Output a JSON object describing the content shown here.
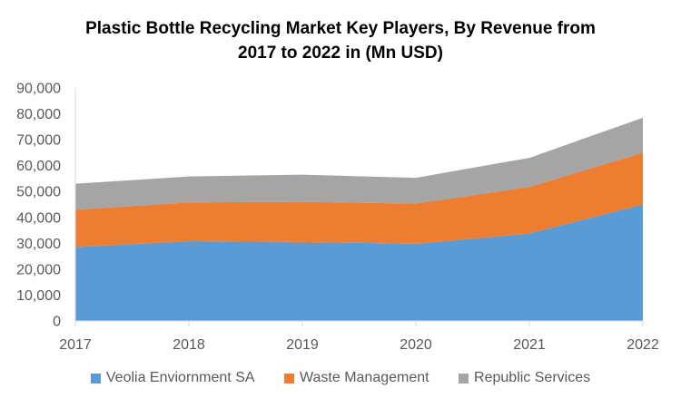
{
  "chart_data": {
    "type": "area",
    "stacked": true,
    "title_lines": [
      "Plastic Bottle Recycling Market Key Players, By Revenue from",
      "2017 to 2022 in (Mn USD)"
    ],
    "x": [
      "2017",
      "2018",
      "2019",
      "2020",
      "2021",
      "2022"
    ],
    "ylim": [
      0,
      90000
    ],
    "y_ticks": [
      "0",
      "10,000",
      "20,000",
      "30,000",
      "40,000",
      "50,000",
      "60,000",
      "70,000",
      "80,000",
      "90,000"
    ],
    "legend_position": "bottom",
    "grid": false,
    "series": [
      {
        "name": "Veolia Enviornment SA",
        "color": "#5B9BD5",
        "values": [
          28500,
          30800,
          30500,
          29800,
          33800,
          45000
        ]
      },
      {
        "name": "Waste Management",
        "color": "#ED7D31",
        "values": [
          14500,
          15000,
          15500,
          15500,
          18000,
          20000
        ]
      },
      {
        "name": "Republic Services",
        "color": "#A5A5A5",
        "values": [
          10000,
          10000,
          10500,
          10000,
          11200,
          13500
        ]
      }
    ]
  }
}
